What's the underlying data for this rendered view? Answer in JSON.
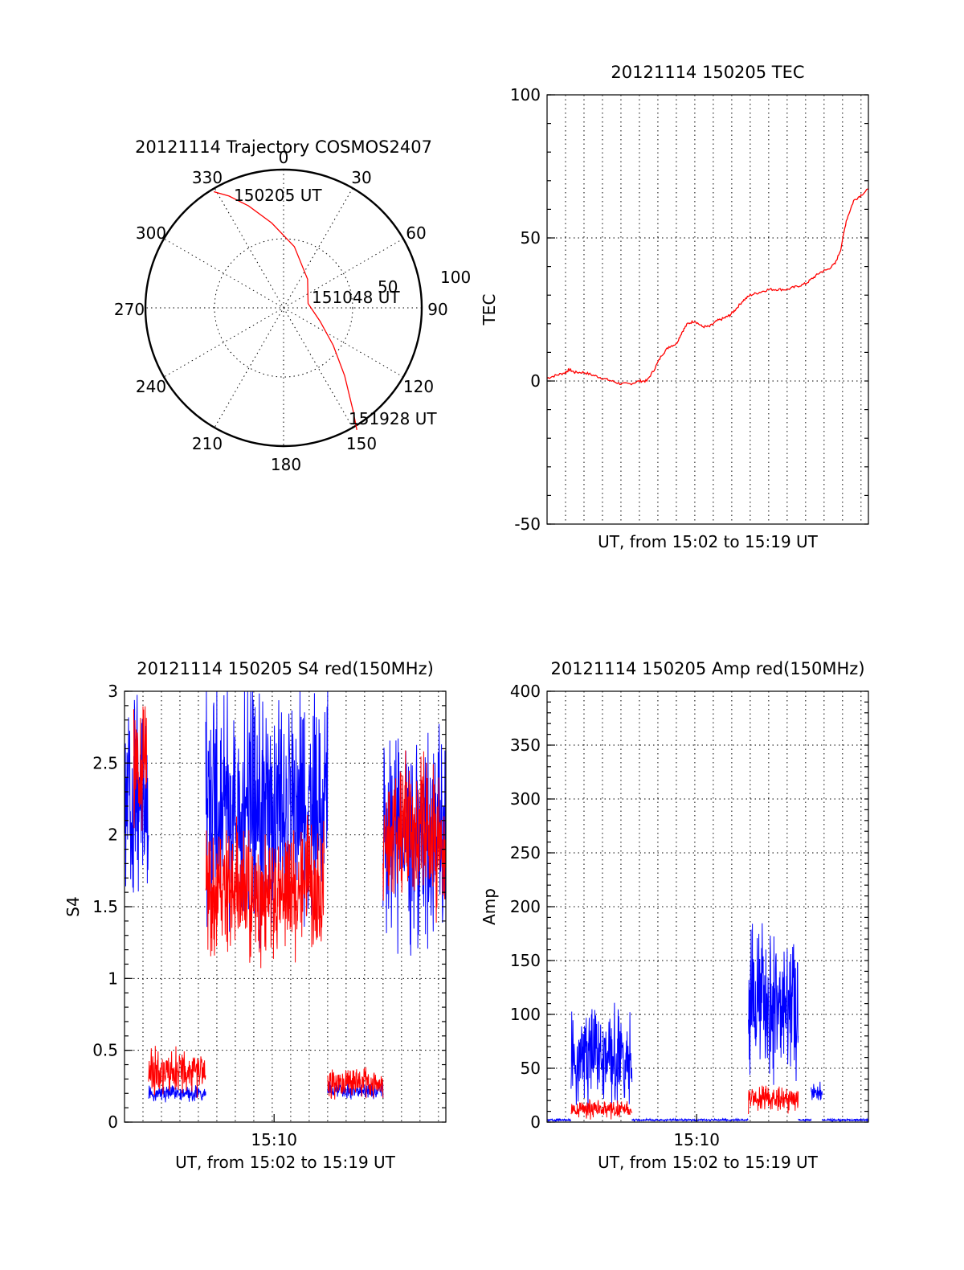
{
  "colors": {
    "red": "#ff0000",
    "blue": "#0000ff",
    "ink": "#000000",
    "background": "#ffffff"
  },
  "chart_data": [
    {
      "id": "trajectory",
      "type": "scatter",
      "title": "20121114 Trajectory COSMOS2407",
      "projection": "polar",
      "azimuth_labels": [
        "0",
        "30",
        "60",
        "90",
        "120",
        "150",
        "180",
        "210",
        "240",
        "270",
        "300",
        "330"
      ],
      "elevation_ring_labels": [
        "50",
        "100"
      ],
      "annotations": [
        "150205 UT",
        "151048 UT",
        "151928 UT"
      ],
      "series": [
        {
          "color": "#ff0000",
          "points_azimuth_zenith": [
            [
              329,
              98
            ],
            [
              334,
              90
            ],
            [
              341,
              78
            ],
            [
              352,
              62
            ],
            [
              10,
              45
            ],
            [
              40,
              27
            ],
            [
              80,
              18
            ],
            [
              110,
              28
            ],
            [
              127,
              45
            ],
            [
              138,
              66
            ],
            [
              146,
              90
            ],
            [
              149,
              103
            ]
          ]
        }
      ],
      "grid": true
    },
    {
      "id": "tec",
      "type": "line",
      "title": "20121114 150205 TEC",
      "xlabel": "UT, from 15:02 to 15:19 UT",
      "ylabel": "TEC",
      "xlim": [
        0,
        17.4
      ],
      "ylim": [
        -50,
        100
      ],
      "yticks": [
        "100",
        "50",
        "0",
        "-50"
      ],
      "grid": true,
      "series": [
        {
          "color": "#ff0000",
          "x": [
            0,
            0.5,
            1.0,
            1.2,
            1.5,
            2.0,
            2.5,
            3.0,
            3.5,
            4.0,
            4.5,
            5.0,
            5.4,
            5.8,
            6.2,
            6.6,
            7.0,
            7.3,
            7.6,
            8.0,
            8.4,
            8.8,
            9.2,
            9.6,
            9.9,
            10.2,
            10.6,
            11.0,
            11.5,
            12.0,
            12.5,
            13.0,
            13.5,
            14.0,
            14.4,
            14.8,
            15.2,
            15.6,
            15.9,
            16.2,
            16.6,
            17.0,
            17.4
          ],
          "y": [
            1,
            2,
            3,
            4,
            3,
            3,
            2,
            1,
            0,
            -1,
            -1,
            0,
            0,
            4,
            9,
            12,
            13,
            17,
            20,
            21,
            19,
            19,
            21,
            22,
            23,
            25,
            28,
            30,
            31,
            32,
            32,
            32,
            33,
            34,
            36,
            38,
            39,
            41,
            46,
            56,
            63,
            65,
            67
          ]
        }
      ]
    },
    {
      "id": "s4",
      "type": "line",
      "title": "20121114 150205 S4 red(150MHz)",
      "xlabel": "UT, from 15:02 to 15:19 UT",
      "ylabel": "S4",
      "xlim": [
        0,
        17.4
      ],
      "ylim": [
        0,
        3
      ],
      "yticks": [
        "0",
        "0.5",
        "1",
        "1.5",
        "2",
        "2.5",
        "3"
      ],
      "xticks": [
        {
          "value": 8.1,
          "label": "15:10"
        }
      ],
      "grid": true,
      "series": [
        {
          "color": "#0000ff",
          "segments": [
            {
              "x0": 0,
              "x1": 1.3,
              "level": 2.3,
              "spread": 0.7
            },
            {
              "x0": 1.3,
              "x1": 4.4,
              "level": 0.2,
              "spread": 0.05
            },
            {
              "x0": 4.4,
              "x1": 11.0,
              "level": 2.2,
              "spread": 0.8
            },
            {
              "x0": 11.0,
              "x1": 14.0,
              "level": 0.22,
              "spread": 0.05
            },
            {
              "x0": 14.0,
              "x1": 17.4,
              "level": 2.0,
              "spread": 0.7
            }
          ]
        },
        {
          "color": "#ff0000",
          "segments": [
            {
              "x0": 0.5,
              "x1": 1.2,
              "level": 2.5,
              "spread": 0.5
            },
            {
              "x0": 1.3,
              "x1": 4.4,
              "level": 0.35,
              "spread": 0.15
            },
            {
              "x0": 4.4,
              "x1": 10.8,
              "level": 1.6,
              "spread": 0.45
            },
            {
              "x0": 11.0,
              "x1": 14.0,
              "level": 0.27,
              "spread": 0.1
            },
            {
              "x0": 14.0,
              "x1": 17.4,
              "level": 2.0,
              "spread": 0.5
            }
          ]
        }
      ]
    },
    {
      "id": "amp",
      "type": "line",
      "title": "20121114 150205 Amp red(150MHz)",
      "xlabel": "UT, from 15:02 to 15:19 UT",
      "ylabel": "Amp",
      "xlim": [
        0,
        17.4
      ],
      "ylim": [
        0,
        400
      ],
      "yticks": [
        "0",
        "50",
        "100",
        "150",
        "200",
        "250",
        "300",
        "350",
        "400"
      ],
      "xticks": [
        {
          "value": 8.1,
          "label": "15:10"
        }
      ],
      "grid": true,
      "series": [
        {
          "color": "#0000ff",
          "segments": [
            {
              "x0": 0,
              "x1": 1.3,
              "level": 2,
              "spread": 1
            },
            {
              "x0": 1.3,
              "x1": 4.6,
              "level": 60,
              "spread": 40
            },
            {
              "x0": 4.6,
              "x1": 10.9,
              "level": 2,
              "spread": 1
            },
            {
              "x0": 10.9,
              "x1": 13.6,
              "level": 110,
              "spread": 60
            },
            {
              "x0": 13.6,
              "x1": 14.3,
              "level": 2,
              "spread": 1
            },
            {
              "x0": 14.3,
              "x1": 14.9,
              "level": 28,
              "spread": 8
            },
            {
              "x0": 14.9,
              "x1": 17.4,
              "level": 2,
              "spread": 1
            }
          ]
        },
        {
          "color": "#ff0000",
          "segments": [
            {
              "x0": 1.3,
              "x1": 4.6,
              "level": 12,
              "spread": 8
            },
            {
              "x0": 10.9,
              "x1": 13.6,
              "level": 22,
              "spread": 12
            }
          ]
        }
      ]
    }
  ]
}
